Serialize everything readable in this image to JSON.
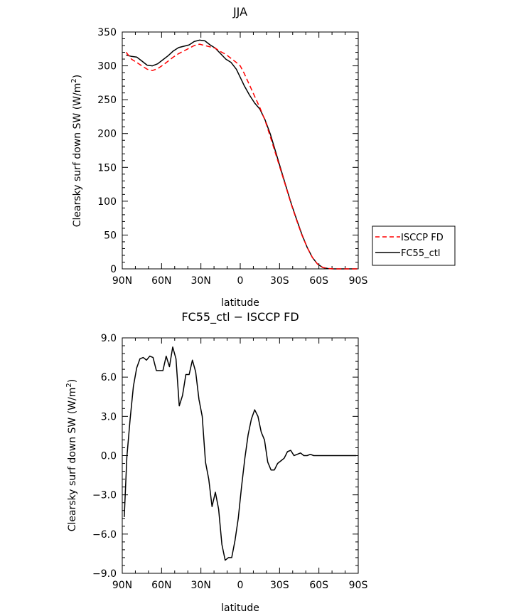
{
  "chart_data": [
    {
      "type": "line",
      "title": "JJA",
      "xlabel": "latitude",
      "ylabel": "Clearsky surf down SW (W/m",
      "ylabel_sup": "2",
      "ylabel_end": ")",
      "x_tick_values": [
        90,
        60,
        30,
        0,
        -30,
        -60,
        -90
      ],
      "x_tick_labels": [
        "90N",
        "60N",
        "30N",
        "0",
        "30S",
        "60S",
        "90S"
      ],
      "xlim": [
        90,
        -90
      ],
      "ylim": [
        0,
        350
      ],
      "y_ticks": [
        0,
        50,
        100,
        150,
        200,
        250,
        300,
        350
      ],
      "y_tick_labels": [
        "0",
        "50",
        "100",
        "150",
        "200",
        "250",
        "300",
        "350"
      ],
      "grid": false,
      "legend_position": "right",
      "series": [
        {
          "name": "ISCCP FD",
          "color": "#ff0000",
          "dash": "dashed",
          "x": [
            87,
            83,
            79,
            75,
            71,
            67,
            63,
            59,
            55,
            51,
            47,
            43,
            39,
            35,
            31,
            27,
            23,
            19,
            15,
            11,
            7,
            3,
            0,
            -3,
            -7,
            -11,
            -15,
            -19,
            -23,
            -27,
            -31,
            -35,
            -39,
            -43,
            -47,
            -51,
            -55,
            -59,
            -63,
            -67,
            -71,
            -75,
            -79,
            -83,
            -87,
            -89
          ],
          "y": [
            320,
            310,
            305,
            300,
            295,
            293,
            296,
            301,
            307,
            313,
            318,
            322,
            326,
            330,
            332,
            330,
            328,
            326,
            321,
            317,
            311,
            305,
            300,
            289,
            272,
            255,
            238,
            219,
            195,
            170,
            145,
            120,
            95,
            72,
            50,
            32,
            17,
            7,
            2,
            0.5,
            0,
            0,
            0,
            0,
            0,
            0
          ]
        },
        {
          "name": "FC55_ctl",
          "color": "#000000",
          "dash": "solid",
          "x": [
            87,
            83,
            79,
            75,
            71,
            67,
            63,
            59,
            55,
            51,
            47,
            43,
            39,
            35,
            31,
            27,
            23,
            19,
            15,
            11,
            7,
            3,
            0,
            -3,
            -7,
            -11,
            -15,
            -19,
            -23,
            -27,
            -31,
            -35,
            -39,
            -43,
            -47,
            -51,
            -55,
            -59,
            -63,
            -67,
            -71,
            -75,
            -79,
            -83,
            -87,
            -89
          ],
          "y": [
            316,
            314,
            313,
            307,
            301,
            300,
            303,
            309,
            315,
            322,
            327,
            329,
            331,
            336,
            338,
            337,
            331,
            326,
            318,
            310,
            305,
            295,
            283,
            271,
            257,
            245,
            236,
            220,
            199,
            173,
            147,
            121,
            96,
            73,
            51,
            32,
            17,
            7,
            2,
            0.4,
            0,
            0,
            0,
            0,
            0,
            0
          ]
        }
      ]
    },
    {
      "type": "line",
      "title": "FC55_ctl − ISCCP FD",
      "xlabel": "latitude",
      "ylabel": "Clearsky surf down SW (W/m",
      "ylabel_sup": "2",
      "ylabel_end": ")",
      "x_tick_values": [
        90,
        60,
        30,
        0,
        -30,
        -60,
        -90
      ],
      "x_tick_labels": [
        "90N",
        "60N",
        "30N",
        "0",
        "30S",
        "60S",
        "90S"
      ],
      "xlim": [
        90,
        -90
      ],
      "ylim": [
        -9,
        9
      ],
      "y_ticks": [
        -9,
        -6,
        -3,
        0,
        3,
        6,
        9
      ],
      "y_tick_labels": [
        "−9.0",
        "−6.0",
        "−3.0",
        "0.0",
        "3.0",
        "6.0",
        "9.0"
      ],
      "grid": false,
      "series": [
        {
          "color": "#000000",
          "dash": "solid",
          "x": [
            88.5,
            86.5,
            84,
            81.5,
            79,
            76.5,
            74,
            71.5,
            69,
            66.5,
            64,
            61.5,
            59,
            56.5,
            54,
            51.5,
            49,
            46.5,
            44,
            41.5,
            39,
            36.5,
            34,
            31.5,
            29,
            26.5,
            24,
            21.5,
            19,
            16.5,
            14,
            11.5,
            9,
            6.5,
            4,
            1.5,
            -1,
            -3.5,
            -6,
            -8.5,
            -11,
            -13.5,
            -16,
            -18.5,
            -21,
            -23.5,
            -26,
            -28.5,
            -31,
            -33.5,
            -36,
            -38.5,
            -41,
            -43.5,
            -46,
            -48.5,
            -51,
            -53.5,
            -56,
            -58.5,
            -61,
            -63.5,
            -66,
            -68.5,
            -71,
            -73.5,
            -76,
            -78.5,
            -81,
            -83.5,
            -86,
            -88.5
          ],
          "y": [
            -4.7,
            -0.1,
            2.8,
            5.3,
            6.7,
            7.4,
            7.5,
            7.3,
            7.6,
            7.5,
            6.5,
            6.5,
            6.5,
            7.6,
            6.8,
            8.3,
            7.4,
            3.8,
            4.6,
            6.2,
            6.2,
            7.3,
            6.4,
            4.3,
            3.0,
            -0.5,
            -1.8,
            -3.9,
            -2.8,
            -4.1,
            -6.8,
            -8.0,
            -7.8,
            -7.8,
            -6.5,
            -4.8,
            -2.4,
            -0.2,
            1.6,
            2.8,
            3.5,
            3.0,
            1.8,
            1.2,
            -0.5,
            -1.1,
            -1.1,
            -0.6,
            -0.4,
            -0.2,
            0.3,
            0.4,
            0.0,
            0.1,
            0.2,
            0.0,
            0.0,
            0.1,
            0.0,
            0.0,
            0.0,
            0.0,
            0.0,
            0.0,
            0.0,
            0.0,
            0.0,
            0.0,
            0.0,
            0.0,
            0.0,
            0.0
          ]
        }
      ]
    }
  ]
}
